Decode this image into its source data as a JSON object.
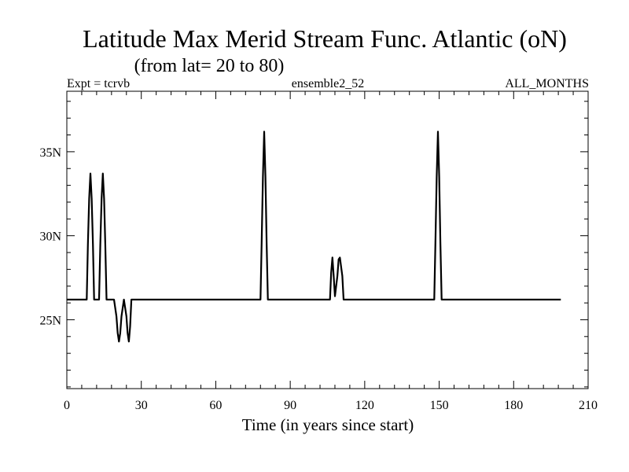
{
  "chart_data": {
    "type": "line",
    "title": "Latitude Max Merid Stream Func. Atlantic (oN)",
    "subtitle": "(from lat= 20 to 80)",
    "header_left": "Expt = tcrvb",
    "header_center": "ensemble2_52",
    "header_right": "ALL_MONTHS",
    "xlabel": "Time (in years since start)",
    "ylabel": "",
    "xlim": [
      0,
      210
    ],
    "ylim": [
      20.9,
      38.6
    ],
    "x_ticks": [
      0,
      30,
      60,
      90,
      120,
      150,
      180,
      210
    ],
    "x_tick_labels": [
      "0",
      "30",
      "60",
      "90",
      "120",
      "150",
      "180",
      "210"
    ],
    "y_ticks": [
      25,
      30,
      35
    ],
    "y_tick_labels": [
      "25N",
      "30N",
      "35N"
    ],
    "grid": false,
    "series": [
      {
        "color": "#000000",
        "x": [
          0,
          7,
          8,
          8.5,
          9,
          9.5,
          10,
          10.5,
          11,
          12,
          13,
          13.5,
          14,
          14.5,
          15,
          15.5,
          16,
          19,
          20,
          20.5,
          21,
          21.5,
          22,
          23,
          24,
          24.5,
          25,
          25.5,
          26,
          78,
          78.5,
          79,
          79.5,
          80,
          80.5,
          81,
          81.5,
          106,
          106.5,
          107,
          107.5,
          108,
          109,
          109.5,
          110,
          111,
          111.5,
          112,
          148,
          148.5,
          149,
          149.5,
          150,
          150.5,
          151,
          151.5,
          199
        ],
        "y": [
          26.2,
          26.2,
          26.2,
          29.5,
          32.2,
          33.7,
          32.2,
          29.5,
          26.2,
          26.2,
          26.2,
          29.5,
          32.2,
          33.7,
          32.2,
          29.5,
          26.2,
          26.2,
          25.2,
          24.2,
          23.7,
          24.2,
          25.2,
          26.2,
          25.2,
          24.2,
          23.7,
          24.6,
          26.2,
          26.2,
          29.6,
          33.5,
          36.2,
          33.5,
          29.6,
          26.2,
          26.2,
          26.2,
          27.8,
          28.7,
          27.6,
          26.4,
          27.6,
          28.6,
          28.7,
          27.6,
          26.2,
          26.2,
          26.2,
          29.6,
          33.5,
          36.2,
          33.5,
          29.6,
          26.2,
          26.2,
          26.2
        ]
      }
    ]
  }
}
